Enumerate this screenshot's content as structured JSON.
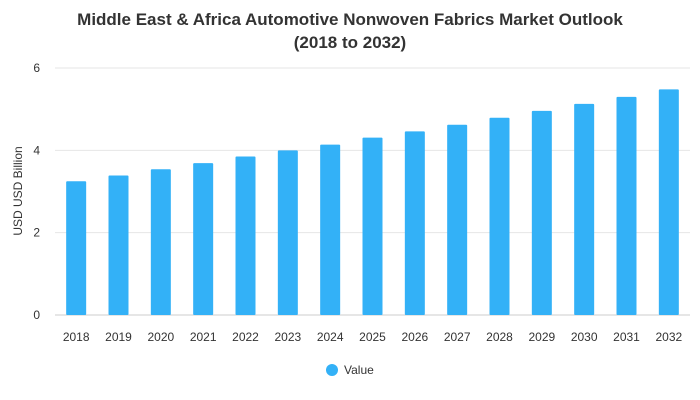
{
  "chart_data": {
    "type": "bar",
    "title_lines": [
      "Middle East & Africa Automotive Nonwoven Fabrics Market Outlook",
      "(2018 to 2032)"
    ],
    "xlabel": "",
    "ylabel": "USD USD Billion",
    "categories": [
      "2018",
      "2019",
      "2020",
      "2021",
      "2022",
      "2023",
      "2024",
      "2025",
      "2026",
      "2027",
      "2028",
      "2029",
      "2030",
      "2031",
      "2032"
    ],
    "series": [
      {
        "name": "Value",
        "color": "#33b1f7",
        "values": [
          3.25,
          3.39,
          3.54,
          3.69,
          3.85,
          4.0,
          4.14,
          4.31,
          4.46,
          4.62,
          4.79,
          4.96,
          5.13,
          5.3,
          5.48
        ]
      }
    ],
    "ylim": [
      0,
      6
    ],
    "yticks": [
      0,
      2,
      4,
      6
    ],
    "grid": true,
    "legend_position": "bottom-center"
  }
}
